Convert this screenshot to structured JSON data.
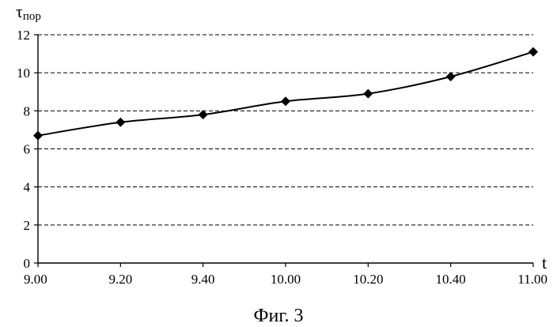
{
  "chart_data": {
    "type": "line",
    "title": "",
    "caption": "Фиг. 3",
    "xlabel": "t",
    "ylabel_main": "τ",
    "ylabel_sub": "пор",
    "categories": [
      "9.00",
      "9.20",
      "9.40",
      "10.00",
      "10.20",
      "10.40",
      "11.00"
    ],
    "series": [
      {
        "values": [
          6.7,
          7.4,
          7.8,
          8.5,
          8.9,
          9.8,
          11.1
        ]
      }
    ],
    "ylim": [
      0,
      12
    ],
    "yticks": [
      0,
      2,
      4,
      6,
      8,
      10,
      12
    ],
    "grid": "horizontal-dashed",
    "marker": "diamond",
    "line_color": "#000000"
  }
}
